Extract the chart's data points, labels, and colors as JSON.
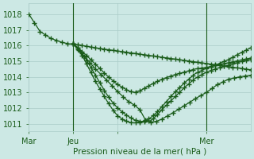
{
  "title": "Pression niveau de la mer( hPa )",
  "xlim": [
    0,
    120
  ],
  "ylim": [
    1010.5,
    1018.7
  ],
  "yticks": [
    1011,
    1012,
    1013,
    1014,
    1015,
    1016,
    1017,
    1018
  ],
  "xtick_positions": [
    0,
    24,
    48,
    96
  ],
  "xtick_labels": [
    "Mar",
    "Jeu",
    "",
    "Mer"
  ],
  "vline_positions": [
    24,
    96
  ],
  "bg_color": "#cce8e4",
  "grid_color": "#aaccc8",
  "line_color": "#1a5c1a",
  "line_width": 0.9,
  "marker": "+",
  "marker_size": 4
}
